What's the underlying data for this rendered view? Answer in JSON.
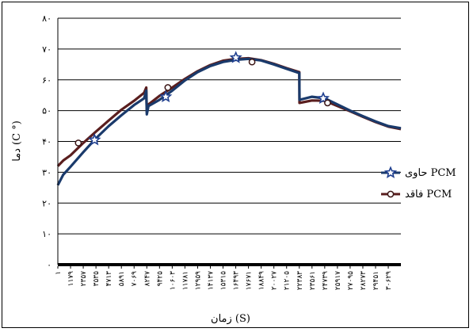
{
  "chart_data": {
    "type": "line",
    "xlabel": "زمان (S)",
    "ylabel": "دما (C °)",
    "ylim": [
      0,
      80
    ],
    "yticks": [
      {
        "value": 0,
        "label": "۰"
      },
      {
        "value": 10,
        "label": "۱۰"
      },
      {
        "value": 20,
        "label": "۲۰"
      },
      {
        "value": 30,
        "label": "۳۰"
      },
      {
        "value": 40,
        "label": "۴۰"
      },
      {
        "value": 50,
        "label": "۵۰"
      },
      {
        "value": 60,
        "label": "۶۰"
      },
      {
        "value": 70,
        "label": "۷۰"
      },
      {
        "value": 80,
        "label": "۸۰"
      }
    ],
    "xlim": [
      1,
      31800
    ],
    "xticks": [
      {
        "value": 1,
        "label": "۱"
      },
      {
        "value": 1179,
        "label": "۱۱۷۹"
      },
      {
        "value": 2357,
        "label": "۲۳۵۷"
      },
      {
        "value": 3535,
        "label": "۳۵۳۵"
      },
      {
        "value": 4713,
        "label": "۴۷۱۳"
      },
      {
        "value": 5891,
        "label": "۵۸۹۱"
      },
      {
        "value": 7069,
        "label": "۷۰۶۹"
      },
      {
        "value": 8247,
        "label": "۸۲۴۷"
      },
      {
        "value": 9425,
        "label": "۹۴۲۵"
      },
      {
        "value": 10603,
        "label": "۱۰۶۰۳"
      },
      {
        "value": 11781,
        "label": "۱۱۷۸۱"
      },
      {
        "value": 12959,
        "label": "۱۲۹۵۹"
      },
      {
        "value": 14137,
        "label": "۱۴۱۳۷"
      },
      {
        "value": 15315,
        "label": "۱۵۳۱۵"
      },
      {
        "value": 16493,
        "label": "۱۶۴۹۳"
      },
      {
        "value": 17671,
        "label": "۱۷۶۷۱"
      },
      {
        "value": 18849,
        "label": "۱۸۸۴۹"
      },
      {
        "value": 20027,
        "label": "۲۰۰۲۷"
      },
      {
        "value": 21205,
        "label": "۲۱۲۰۵"
      },
      {
        "value": 22383,
        "label": "۲۲۳۸۳"
      },
      {
        "value": 23561,
        "label": "۲۳۵۶۱"
      },
      {
        "value": 24739,
        "label": "۲۴۷۳۹"
      },
      {
        "value": 25917,
        "label": "۲۵۹۱۷"
      },
      {
        "value": 27095,
        "label": "۲۷۰۹۵"
      },
      {
        "value": 28273,
        "label": "۲۸۲۷۳"
      },
      {
        "value": 29451,
        "label": "۲۹۴۵۱"
      },
      {
        "value": 30629,
        "label": "۳۰۶۲۹"
      }
    ],
    "grid": true,
    "legend_position": "right",
    "series": [
      {
        "name": "حاوی PCM",
        "color": "#1a3a6b",
        "marker": "star",
        "markers": [
          [
            3400,
            40.5
          ],
          [
            10000,
            54.5
          ],
          [
            16500,
            67.2
          ],
          [
            24600,
            54.0
          ]
        ],
        "points": [
          [
            1,
            25.8
          ],
          [
            500,
            29.2
          ],
          [
            1179,
            31.8
          ],
          [
            2357,
            36.5
          ],
          [
            3535,
            41.0
          ],
          [
            4713,
            45.0
          ],
          [
            5891,
            48.5
          ],
          [
            7069,
            51.8
          ],
          [
            8000,
            54.0
          ],
          [
            8200,
            56.5
          ],
          [
            8247,
            48.8
          ],
          [
            8400,
            51.5
          ],
          [
            9425,
            53.5
          ],
          [
            10603,
            56.5
          ],
          [
            11781,
            59.8
          ],
          [
            12959,
            62.5
          ],
          [
            14137,
            64.5
          ],
          [
            15315,
            65.8
          ],
          [
            16493,
            66.5
          ],
          [
            17671,
            66.8
          ],
          [
            18849,
            66.3
          ],
          [
            20027,
            65.0
          ],
          [
            21205,
            63.6
          ],
          [
            22383,
            62.2
          ],
          [
            22400,
            53.5
          ],
          [
            23561,
            54.5
          ],
          [
            24739,
            54.0
          ],
          [
            25917,
            52.0
          ],
          [
            27095,
            50.0
          ],
          [
            28273,
            48.2
          ],
          [
            29451,
            46.5
          ],
          [
            30629,
            45.0
          ],
          [
            31800,
            44.3
          ]
        ]
      },
      {
        "name": "فاقد PCM",
        "color": "#5a1e1e",
        "marker": "circle",
        "markers": [
          [
            1900,
            39.5
          ],
          [
            10200,
            57.5
          ],
          [
            18000,
            65.8
          ],
          [
            25000,
            52.5
          ]
        ],
        "points": [
          [
            1,
            32.0
          ],
          [
            500,
            33.8
          ],
          [
            1179,
            35.5
          ],
          [
            2357,
            39.5
          ],
          [
            3535,
            43.2
          ],
          [
            4713,
            46.8
          ],
          [
            5891,
            50.3
          ],
          [
            7069,
            53.2
          ],
          [
            8000,
            55.8
          ],
          [
            8200,
            57.5
          ],
          [
            8247,
            49.5
          ],
          [
            8400,
            52.0
          ],
          [
            9425,
            54.8
          ],
          [
            10603,
            57.5
          ],
          [
            11781,
            60.3
          ],
          [
            12959,
            62.8
          ],
          [
            14137,
            64.8
          ],
          [
            15315,
            66.2
          ],
          [
            16493,
            66.8
          ],
          [
            17671,
            67.0
          ],
          [
            18849,
            66.4
          ],
          [
            20027,
            65.2
          ],
          [
            21205,
            63.8
          ],
          [
            22383,
            62.5
          ],
          [
            22400,
            52.5
          ],
          [
            23561,
            53.3
          ],
          [
            24739,
            53.2
          ],
          [
            25917,
            51.5
          ],
          [
            27095,
            49.8
          ],
          [
            28273,
            48.0
          ],
          [
            29451,
            46.3
          ],
          [
            30629,
            44.8
          ],
          [
            31800,
            44.0
          ]
        ]
      }
    ]
  }
}
